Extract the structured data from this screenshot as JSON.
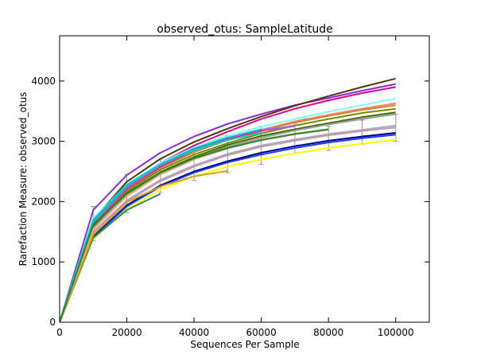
{
  "chart_data": {
    "type": "line",
    "title": "observed_otus: SampleLatitude",
    "xlabel": "Sequences Per Sample",
    "ylabel": "Rarefaction Measure: observed_otus",
    "xlim": [
      0,
      110000
    ],
    "ylim": [
      0,
      4750
    ],
    "xticks": [
      0,
      20000,
      40000,
      60000,
      80000,
      100000
    ],
    "yticks": [
      0,
      1000,
      2000,
      3000,
      4000
    ],
    "grid": false,
    "legend": "none",
    "series": [
      {
        "color": "#8a2be2",
        "x": [
          0,
          10000,
          20000,
          30000,
          40000,
          50000,
          60000,
          70000,
          80000,
          90000,
          100000
        ],
        "y": [
          0,
          1860,
          2440,
          2810,
          3080,
          3290,
          3450,
          3600,
          3720,
          3840,
          3950
        ]
      },
      {
        "color": "#4b3a07",
        "x": [
          0,
          10000,
          20000,
          30000,
          40000,
          50000,
          60000,
          70000,
          80000,
          90000,
          100000
        ],
        "y": [
          0,
          1700,
          2330,
          2710,
          2990,
          3210,
          3410,
          3590,
          3750,
          3900,
          4040
        ]
      },
      {
        "color": "#e0008c",
        "x": [
          0,
          10000,
          20000,
          30000,
          40000,
          50000,
          60000,
          70000,
          80000,
          90000,
          100000
        ],
        "y": [
          0,
          1640,
          2250,
          2640,
          2930,
          3160,
          3370,
          3540,
          3680,
          3800,
          3900
        ]
      },
      {
        "color": "#7fffff",
        "x": [
          0,
          10000,
          20000,
          30000,
          40000,
          50000,
          60000,
          70000,
          80000,
          90000,
          100000
        ],
        "y": [
          0,
          1720,
          2280,
          2640,
          2900,
          3090,
          3240,
          3370,
          3490,
          3600,
          3710
        ]
      },
      {
        "color": "#ff7f50",
        "x": [
          0,
          10000,
          20000,
          30000,
          40000,
          50000,
          60000,
          70000,
          80000,
          90000,
          100000
        ],
        "y": [
          0,
          1650,
          2220,
          2580,
          2840,
          3030,
          3190,
          3330,
          3440,
          3540,
          3630
        ]
      },
      {
        "color": "#c88a3a",
        "x": [
          0,
          10000,
          20000,
          30000,
          40000,
          50000,
          60000,
          70000,
          80000,
          90000,
          100000
        ],
        "y": [
          0,
          1620,
          2200,
          2560,
          2820,
          3020,
          3180,
          3310,
          3420,
          3520,
          3600
        ]
      },
      {
        "color": "#7a8a00",
        "x": [
          0,
          10000,
          20000,
          30000,
          40000,
          50000,
          60000,
          70000,
          80000,
          90000,
          100000
        ],
        "y": [
          0,
          1600,
          2170,
          2530,
          2780,
          2970,
          3130,
          3260,
          3370,
          3470,
          3540
        ]
      },
      {
        "color": "#3a6b00",
        "x": [
          0,
          10000,
          20000,
          30000,
          40000,
          50000,
          60000,
          70000,
          80000,
          90000,
          100000
        ],
        "y": [
          0,
          1580,
          2140,
          2490,
          2740,
          2940,
          3090,
          3200,
          3300,
          3400,
          3480
        ]
      },
      {
        "color": "#9a9a9a",
        "x": [
          0,
          10000,
          20000,
          30000,
          40000,
          50000,
          60000,
          70000,
          80000,
          90000,
          100000
        ],
        "y": [
          0,
          1560,
          2120,
          2470,
          2720,
          2910,
          3060,
          3180,
          3280,
          3370,
          3450
        ]
      },
      {
        "color": "#b0a0d0",
        "x": [
          0,
          10000,
          20000,
          30000,
          40000,
          50000,
          60000,
          70000,
          80000,
          90000,
          100000
        ],
        "y": [
          0,
          1500,
          2020,
          2360,
          2600,
          2790,
          2930,
          3030,
          3120,
          3190,
          3260
        ]
      },
      {
        "color": "#c0a0a0",
        "x": [
          0,
          10000,
          20000,
          30000,
          40000,
          50000,
          60000,
          70000,
          80000,
          90000,
          100000
        ],
        "y": [
          0,
          1480,
          2000,
          2340,
          2580,
          2770,
          2910,
          3010,
          3100,
          3170,
          3230
        ]
      },
      {
        "color": "#00008b",
        "x": [
          0,
          10000,
          20000,
          30000,
          40000,
          50000,
          60000,
          70000,
          80000,
          90000,
          100000
        ],
        "y": [
          0,
          1420,
          1940,
          2270,
          2500,
          2670,
          2810,
          2920,
          3010,
          3080,
          3140
        ]
      },
      {
        "color": "#1e3cff",
        "x": [
          0,
          10000,
          20000,
          30000,
          40000,
          50000,
          60000,
          70000,
          80000,
          90000,
          100000
        ],
        "y": [
          0,
          1400,
          1920,
          2250,
          2480,
          2650,
          2780,
          2890,
          2980,
          3050,
          3110
        ]
      },
      {
        "color": "#ffff00",
        "x": [
          0,
          10000,
          20000,
          30000,
          40000,
          50000,
          60000,
          70000,
          80000,
          90000,
          100000
        ],
        "y": [
          0,
          1380,
          1880,
          2200,
          2420,
          2580,
          2700,
          2800,
          2890,
          2960,
          3030
        ]
      },
      {
        "color": "#ff1493",
        "x": [
          0,
          10000,
          20000,
          30000,
          40000,
          50000,
          60000,
          70000
        ],
        "y": [
          0,
          1620,
          2210,
          2580,
          2850,
          3040,
          3170,
          3260
        ]
      },
      {
        "color": "#9370db",
        "x": [
          0,
          10000,
          20000,
          30000,
          40000,
          50000,
          60000,
          70000
        ],
        "y": [
          0,
          1640,
          2230,
          2600,
          2870,
          3060,
          3190,
          3250
        ]
      },
      {
        "color": "#20b2aa",
        "x": [
          0,
          10000,
          20000,
          30000,
          40000,
          50000,
          60000
        ],
        "y": [
          0,
          1670,
          2260,
          2620,
          2880,
          3060,
          3200
        ]
      },
      {
        "color": "#2e8b57",
        "x": [
          0,
          10000,
          20000,
          30000
        ],
        "y": [
          0,
          1400,
          1860,
          2130
        ]
      },
      {
        "color": "#d2a020",
        "x": [
          0,
          10000,
          20000,
          30000,
          40000,
          50000
        ],
        "y": [
          0,
          1450,
          1990,
          2250,
          2420,
          2510
        ]
      },
      {
        "color": "#ffa07a",
        "x": [
          0,
          10000,
          20000,
          30000,
          40000,
          50000,
          60000,
          70000,
          80000
        ],
        "y": [
          0,
          1540,
          2090,
          2450,
          2700,
          2880,
          3030,
          3130,
          3190
        ]
      },
      {
        "color": "#00ced1",
        "x": [
          0,
          10000,
          20000,
          30000,
          40000,
          50000,
          60000
        ],
        "y": [
          0,
          1700,
          2280,
          2620,
          2850,
          3020,
          3140
        ]
      },
      {
        "color": "#228b22",
        "x": [
          0,
          10000,
          20000,
          30000,
          40000,
          50000,
          60000,
          70000,
          80000
        ],
        "y": [
          0,
          1620,
          2130,
          2480,
          2720,
          2890,
          3020,
          3120,
          3200
        ]
      }
    ],
    "error_bars": [
      {
        "x": 10000,
        "low": 1350,
        "high": 1920
      },
      {
        "x": 20000,
        "low": 1820,
        "high": 2450
      },
      {
        "x": 30000,
        "low": 2150,
        "high": 2700
      },
      {
        "x": 40000,
        "low": 2350,
        "high": 2900
      },
      {
        "x": 50000,
        "low": 2480,
        "high": 3100
      },
      {
        "x": 60000,
        "low": 2620,
        "high": 3250
      },
      {
        "x": 70000,
        "low": 2800,
        "high": 3300
      },
      {
        "x": 80000,
        "low": 2850,
        "high": 3250
      },
      {
        "x": 90000,
        "low": 2950,
        "high": 3350
      },
      {
        "x": 100000,
        "low": 3000,
        "high": 3450
      }
    ]
  }
}
